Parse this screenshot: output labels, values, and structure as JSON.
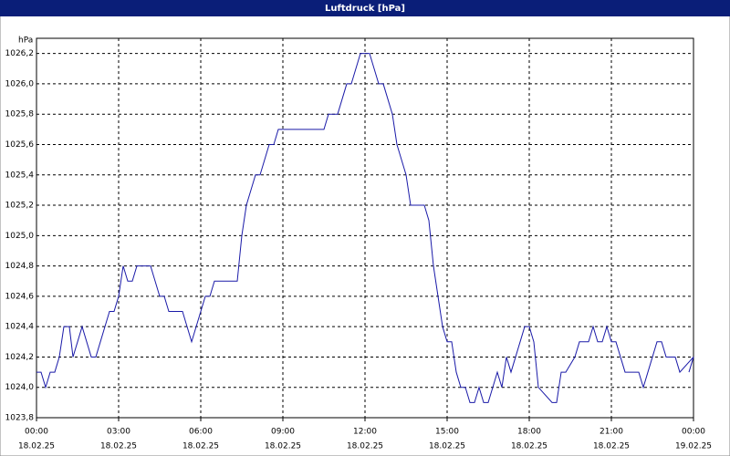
{
  "chart_data": {
    "type": "line",
    "title": "Luftdruck [hPa]",
    "y_unit": "hPa",
    "x": [
      0,
      10,
      20,
      30,
      40,
      50,
      60,
      72,
      80,
      90,
      100,
      110,
      120,
      130,
      140,
      150,
      160,
      170,
      180,
      190,
      200,
      210,
      220,
      230,
      250,
      260,
      270,
      280,
      290,
      300,
      320,
      330,
      340,
      350,
      360,
      370,
      380,
      390,
      440,
      450,
      460,
      470,
      480,
      490,
      500,
      510,
      520,
      530,
      630,
      640,
      660,
      670,
      680,
      690,
      700,
      710,
      730,
      740,
      750,
      760,
      770,
      780,
      790,
      800,
      810,
      820,
      850,
      860,
      870,
      880,
      890,
      900,
      910,
      920,
      930,
      940,
      950,
      960,
      970,
      980,
      990,
      1010,
      1020,
      1030,
      1040,
      1050,
      1060,
      1070,
      1080,
      1090,
      1100,
      1130,
      1140,
      1150,
      1160,
      1180,
      1190,
      1210,
      1220,
      1230,
      1240,
      1250,
      1260,
      1270,
      1280,
      1290,
      1320,
      1330,
      1340,
      1350,
      1360,
      1370,
      1380,
      1400,
      1410,
      1440,
      1430
    ],
    "series": [
      {
        "name": "Luftdruck",
        "color": "#1a1aa8",
        "values": [
          1024.1,
          1024.1,
          1024.0,
          1024.1,
          1024.1,
          1024.2,
          1024.4,
          1024.4,
          1024.2,
          1024.3,
          1024.4,
          1024.3,
          1024.2,
          1024.2,
          1024.3,
          1024.4,
          1024.5,
          1024.5,
          1024.6,
          1024.8,
          1024.7,
          1024.7,
          1024.8,
          1024.8,
          1024.8,
          1024.7,
          1024.6,
          1024.6,
          1024.5,
          1024.5,
          1024.5,
          1024.4,
          1024.3,
          1024.4,
          1024.5,
          1024.6,
          1024.6,
          1024.7,
          1024.7,
          1025.0,
          1025.2,
          1025.3,
          1025.4,
          1025.4,
          1025.5,
          1025.6,
          1025.6,
          1025.7,
          1025.7,
          1025.8,
          1025.8,
          1025.9,
          1026.0,
          1026.0,
          1026.1,
          1026.2,
          1026.2,
          1026.1,
          1026.0,
          1026.0,
          1025.9,
          1025.8,
          1025.6,
          1025.5,
          1025.4,
          1025.2,
          1025.2,
          1025.1,
          1024.8,
          1024.6,
          1024.4,
          1024.3,
          1024.3,
          1024.1,
          1024.0,
          1024.0,
          1023.9,
          1023.9,
          1024.0,
          1023.9,
          1023.9,
          1024.1,
          1024.0,
          1024.2,
          1024.1,
          1024.2,
          1024.3,
          1024.4,
          1024.4,
          1024.3,
          1024.0,
          1023.9,
          1023.9,
          1024.1,
          1024.1,
          1024.2,
          1024.3,
          1024.3,
          1024.4,
          1024.3,
          1024.3,
          1024.4,
          1024.3,
          1024.3,
          1024.2,
          1024.1,
          1024.1,
          1024.0,
          1024.1,
          1024.2,
          1024.3,
          1024.3,
          1024.2,
          1024.2,
          1024.1,
          1024.2,
          1024.1
        ]
      }
    ],
    "xlim": [
      0,
      1440
    ],
    "ylim": [
      1023.8,
      1026.3
    ],
    "xticks": [
      {
        "value": 0,
        "label": "00:00",
        "date": "18.02.25"
      },
      {
        "value": 180,
        "label": "03:00",
        "date": "18.02.25"
      },
      {
        "value": 360,
        "label": "06:00",
        "date": "18.02.25"
      },
      {
        "value": 540,
        "label": "09:00",
        "date": "18.02.25"
      },
      {
        "value": 720,
        "label": "12:00",
        "date": "18.02.25"
      },
      {
        "value": 900,
        "label": "15:00",
        "date": "18.02.25"
      },
      {
        "value": 1080,
        "label": "18:00",
        "date": "18.02.25"
      },
      {
        "value": 1260,
        "label": "21:00",
        "date": "18.02.25"
      },
      {
        "value": 1440,
        "label": "00:00",
        "date": "19.02.25"
      }
    ],
    "yticks": [
      {
        "value": 1023.8,
        "label": "1023,8"
      },
      {
        "value": 1024.0,
        "label": "1024,0"
      },
      {
        "value": 1024.2,
        "label": "1024,2"
      },
      {
        "value": 1024.4,
        "label": "1024,4"
      },
      {
        "value": 1024.6,
        "label": "1024,6"
      },
      {
        "value": 1024.8,
        "label": "1024,8"
      },
      {
        "value": 1025.0,
        "label": "1025,0"
      },
      {
        "value": 1025.2,
        "label": "1025,2"
      },
      {
        "value": 1025.4,
        "label": "1025,4"
      },
      {
        "value": 1025.6,
        "label": "1025,6"
      },
      {
        "value": 1025.8,
        "label": "1025,8"
      },
      {
        "value": 1026.0,
        "label": "1026,0"
      },
      {
        "value": 1026.2,
        "label": "1026,2"
      }
    ],
    "grid": true
  }
}
